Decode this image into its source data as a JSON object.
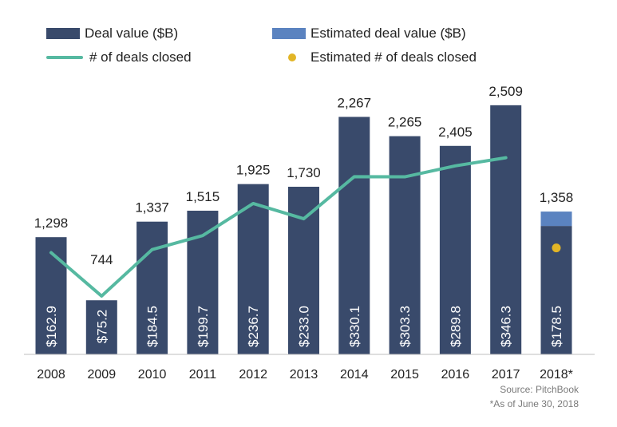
{
  "legend": {
    "deal_value": "Deal value ($B)",
    "estimated_deal_value": "Estimated deal value ($B)",
    "deals_closed": "# of deals closed",
    "estimated_deals_closed": "Estimated # of deals closed"
  },
  "colors": {
    "bar": "#394a6b",
    "estimated_bar": "#5b83c0",
    "line": "#56b9a1",
    "estimated_dot": "#e2b526",
    "text": "#222222",
    "axis": "#bfbfbf"
  },
  "source": "Source: PitchBook",
  "footnote": "*As of June 30, 2018",
  "chart_data": {
    "type": "bar",
    "categories": [
      "2008",
      "2009",
      "2010",
      "2011",
      "2012",
      "2013",
      "2014",
      "2015",
      "2016",
      "2017",
      "2018*"
    ],
    "bar_labels": [
      "$162.9",
      "$75.2",
      "$184.5",
      "$199.7",
      "$236.7",
      "$233.0",
      "$330.1",
      "$303.3",
      "$289.8",
      "$346.3",
      "$178.5"
    ],
    "series": [
      {
        "name": "Deal value ($B)",
        "type": "bar",
        "values": [
          162.9,
          75.2,
          184.5,
          199.7,
          236.7,
          233.0,
          330.1,
          303.3,
          289.8,
          346.3,
          178.5
        ]
      },
      {
        "name": "Estimated deal value ($B)",
        "type": "bar-stacked",
        "values": [
          null,
          null,
          null,
          null,
          null,
          null,
          null,
          null,
          null,
          null,
          20
        ]
      },
      {
        "name": "# of deals closed",
        "type": "line",
        "values": [
          1298,
          744,
          1337,
          1515,
          1925,
          1730,
          2267,
          2265,
          2405,
          2509,
          null
        ]
      },
      {
        "name": "Estimated # of deals closed",
        "type": "point",
        "values": [
          null,
          null,
          null,
          null,
          null,
          null,
          null,
          null,
          null,
          null,
          1358
        ]
      }
    ],
    "line_labels": [
      "1,298",
      "744",
      "1,337",
      "1,515",
      "1,925",
      "1,730",
      "2,267",
      "2,265",
      "2,405",
      "2,509",
      "1,358"
    ],
    "ylim_value": [
      0,
      365
    ],
    "ylim_count": [
      0,
      3350
    ],
    "grid": false
  }
}
